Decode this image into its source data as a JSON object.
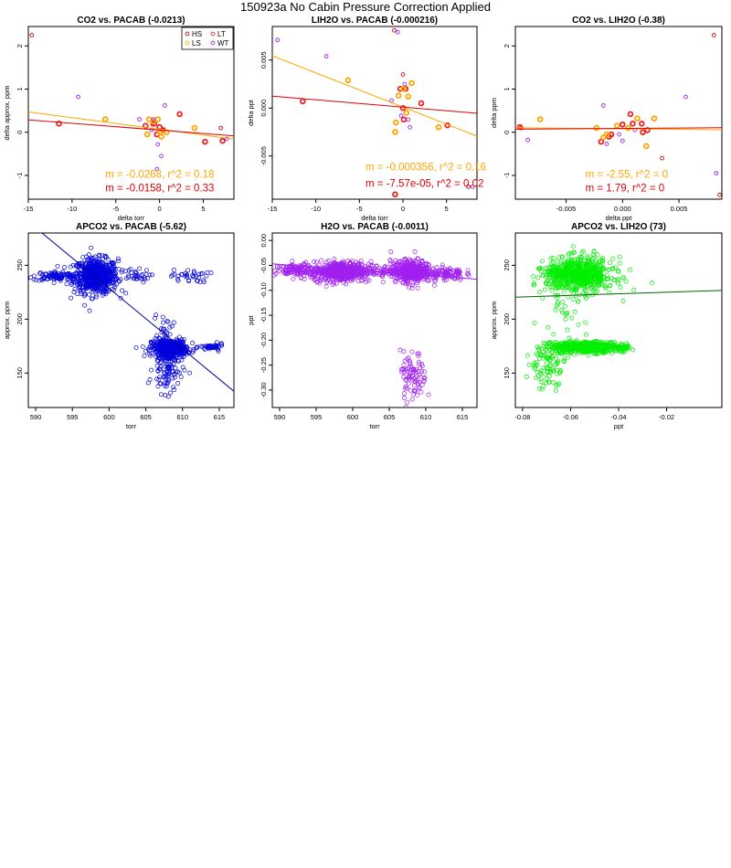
{
  "main_title": "150923a   No Cabin Pressure Correction Applied",
  "colors": {
    "HS": "#cc0000",
    "LS": "#ffa500",
    "LT": "#ee2222",
    "WT": "#a020f0",
    "fit_orange": "#ffa500",
    "fit_red": "#dd0000",
    "blue": "#0000dd",
    "purple": "#a020f0",
    "green": "#00ee00",
    "fit_darkblue": "#000099",
    "fit_darkgreen": "#006400"
  },
  "chart_data": [
    {
      "type": "scatter",
      "title": "CO2 vs. PACAB (-0.0213)",
      "xlabel": "delta torr",
      "ylabel": "delta approx. ppm",
      "xlim": [
        -15,
        8.5
      ],
      "ylim": [
        -1.55,
        2.45
      ],
      "xticks": [
        -15,
        -10,
        -5,
        0,
        5
      ],
      "yticks": [
        -1,
        0,
        1,
        2
      ],
      "legend": {
        "position": "top-right",
        "entries": [
          {
            "label": "HS",
            "color": "#cc0000"
          },
          {
            "label": "LT",
            "color": "#ee2222"
          },
          {
            "label": "LS",
            "color": "#ffa500"
          },
          {
            "label": "WT",
            "color": "#a020f0"
          }
        ]
      },
      "series": [
        {
          "name": "HS",
          "points": [
            [
              -14.6,
              2.25
            ],
            [
              7,
              0.1
            ],
            [
              -0.8,
              0.18
            ],
            [
              0.3,
              0.05
            ]
          ]
        },
        {
          "name": "LT",
          "points": [
            [
              -11.5,
              0.2
            ],
            [
              -1.6,
              0.15
            ],
            [
              -0.6,
              0.2
            ],
            [
              0,
              0.12
            ],
            [
              0.4,
              0.05
            ],
            [
              2.3,
              0.42
            ],
            [
              5.2,
              -0.22
            ],
            [
              7.2,
              -0.2
            ],
            [
              -0.3,
              -0.05
            ]
          ]
        },
        {
          "name": "LS",
          "points": [
            [
              -6.2,
              0.3
            ],
            [
              -0.7,
              0.25
            ],
            [
              -0.2,
              0.3
            ],
            [
              0.1,
              0.0
            ],
            [
              0.2,
              -0.1
            ],
            [
              0.8,
              0.0
            ],
            [
              4,
              0.1
            ],
            [
              -1.4,
              -0.05
            ],
            [
              -1.2,
              0.3
            ]
          ]
        },
        {
          "name": "WT",
          "points": [
            [
              -9.3,
              0.82
            ],
            [
              -2.3,
              0.3
            ],
            [
              -0.7,
              0.3
            ],
            [
              -0.2,
              -0.28
            ],
            [
              0.2,
              -0.55
            ],
            [
              0.6,
              0.62
            ],
            [
              7.7,
              -0.15
            ],
            [
              -0.3,
              -0.85
            ],
            [
              -0.9,
              0.05
            ]
          ]
        }
      ],
      "fits": [
        {
          "name": "orange",
          "slope": -0.0268,
          "intercept": 0.07,
          "color": "#ffa500"
        },
        {
          "name": "red",
          "slope": -0.0158,
          "intercept": 0.05,
          "color": "#dd0000"
        }
      ],
      "annotations": [
        {
          "text": "m = -0.0268, r^2 = 0.18",
          "color": "#ffa500",
          "at": [
            -6.2,
            -1.05
          ]
        },
        {
          "text": "m = -0.0158, r^2 = 0.33",
          "color": "#dd0000",
          "at": [
            -6.2,
            -1.37
          ]
        }
      ]
    },
    {
      "type": "scatter",
      "title": "LIH2O vs. PACAB (-0.000216)",
      "xlabel": "delta torr",
      "ylabel": "delta ppt",
      "xlim": [
        -15,
        8.5
      ],
      "ylim": [
        -0.0095,
        0.0085
      ],
      "xticks": [
        -15,
        -10,
        -5,
        0,
        5
      ],
      "yticks": [
        -0.005,
        0.0,
        0.005
      ],
      "ytick_labels": [
        "-0.005",
        "0.000",
        "0.005"
      ],
      "series": [
        {
          "name": "HS",
          "points": [
            [
              -1.0,
              0.0081
            ],
            [
              0.0,
              0.0035
            ],
            [
              7.5,
              -0.0082
            ]
          ]
        },
        {
          "name": "LT",
          "points": [
            [
              -11.5,
              0.0007
            ],
            [
              -0.9,
              -0.009
            ],
            [
              -0.3,
              0.002
            ],
            [
              0.0,
              0.0
            ],
            [
              0.1,
              -0.0012
            ],
            [
              2.1,
              0.0005
            ],
            [
              5.1,
              -0.0018
            ],
            [
              0.3,
              0.002
            ]
          ]
        },
        {
          "name": "LS",
          "points": [
            [
              -6.3,
              0.0029
            ],
            [
              -0.9,
              -0.0025
            ],
            [
              -0.5,
              0.0013
            ],
            [
              0.1,
              0.002
            ],
            [
              0.4,
              -0.0005
            ],
            [
              1.0,
              0.0026
            ],
            [
              4.1,
              -0.002
            ],
            [
              -0.8,
              -0.0015
            ],
            [
              0.6,
              0.0012
            ]
          ]
        },
        {
          "name": "WT",
          "points": [
            [
              -14.4,
              0.0071
            ],
            [
              -8.8,
              0.0054
            ],
            [
              -0.6,
              0.0079
            ],
            [
              0.2,
              0.0025
            ],
            [
              0.6,
              -0.0012
            ],
            [
              -0.2,
              -0.0008
            ],
            [
              8.0,
              -0.0082
            ],
            [
              -1.3,
              0.0008
            ],
            [
              0.8,
              -0.002
            ]
          ]
        }
      ],
      "fits": [
        {
          "name": "orange",
          "slope": -0.000356,
          "intercept": 0.0001,
          "color": "#ffa500"
        },
        {
          "name": "red",
          "slope": -7.57e-05,
          "intercept": 0.0001,
          "color": "#dd0000"
        }
      ],
      "annotations": [
        {
          "text": "m = -0.000356, r^2 = 0.16",
          "color": "#ffa500",
          "at": [
            -4.3,
            -0.0065
          ]
        },
        {
          "text": "m = -7.57e-05, r^2 = 0.02",
          "color": "#dd0000",
          "at": [
            -4.3,
            -0.0082
          ]
        }
      ]
    },
    {
      "type": "scatter",
      "title": "CO2 vs. LIH2O (-0.38)",
      "xlabel": "delta ppt",
      "ylabel": "delta ppm",
      "xlim": [
        -0.0095,
        0.0088
      ],
      "ylim": [
        -1.55,
        2.45
      ],
      "xticks": [
        -0.005,
        0.0,
        0.005
      ],
      "xtick_labels": [
        "-0.005",
        "0.000",
        "0.005"
      ],
      "yticks": [
        -1,
        0,
        1,
        2
      ],
      "series": [
        {
          "name": "HS",
          "points": [
            [
              0.0081,
              2.25
            ],
            [
              0.0035,
              -0.6
            ],
            [
              -0.009,
              0.1
            ],
            [
              0.0086,
              -1.45
            ]
          ]
        },
        {
          "name": "LT",
          "points": [
            [
              -0.0091,
              0.12
            ],
            [
              -0.0019,
              -0.22
            ],
            [
              0.0,
              0.18
            ],
            [
              0.0007,
              0.42
            ],
            [
              0.0018,
              0.0
            ],
            [
              0.0022,
              0.05
            ],
            [
              -0.001,
              -0.05
            ],
            [
              -0.0012,
              -0.1
            ],
            [
              0.0017,
              0.2
            ],
            [
              0.0009,
              0.2
            ]
          ]
        },
        {
          "name": "LS",
          "points": [
            [
              -0.0073,
              0.3
            ],
            [
              -0.0023,
              0.1
            ],
            [
              -0.0014,
              -0.05
            ],
            [
              0.0013,
              0.32
            ],
            [
              0.0028,
              0.32
            ],
            [
              0.0021,
              -0.32
            ],
            [
              -0.0005,
              0.15
            ],
            [
              0.0005,
              0.1
            ],
            [
              -0.0017,
              -0.12
            ]
          ]
        },
        {
          "name": "WT",
          "points": [
            [
              -0.0084,
              -0.18
            ],
            [
              -0.0017,
              0.62
            ],
            [
              -0.0014,
              -0.27
            ],
            [
              0.0,
              -0.2
            ],
            [
              0.0056,
              0.82
            ],
            [
              0.0083,
              -0.95
            ],
            [
              -0.0003,
              -0.05
            ],
            [
              0.0011,
              0.05
            ]
          ]
        }
      ],
      "fits": [
        {
          "name": "orange",
          "slope": -2.55,
          "intercept": 0.08,
          "color": "#ffa500"
        },
        {
          "name": "red",
          "slope": 1.79,
          "intercept": 0.09,
          "color": "#dd0000"
        }
      ],
      "annotations": [
        {
          "text": "m = -2.55, r^2 = 0",
          "color": "#ffa500",
          "at": [
            -0.0033,
            -1.05
          ]
        },
        {
          "text": "m = 1.79, r^2 = 0",
          "color": "#dd0000",
          "at": [
            -0.0033,
            -1.37
          ]
        }
      ]
    },
    {
      "type": "scatter",
      "title": "APCO2 vs. PACAB (-5.62)",
      "xlabel": "torr",
      "ylabel": "approx. ppm",
      "xlim": [
        589,
        617
      ],
      "ylim": [
        118,
        280
      ],
      "xticks": [
        590,
        595,
        600,
        605,
        610,
        615
      ],
      "yticks": [
        150,
        200,
        250
      ],
      "color": "#0000dd",
      "clusters": [
        {
          "cx": 598.2,
          "cy": 240,
          "sx": 1.5,
          "sy": 8,
          "n": 650
        },
        {
          "cx": 592.8,
          "cy": 240,
          "sx": 1.6,
          "sy": 2.2,
          "n": 100
        },
        {
          "cx": 603.5,
          "cy": 240,
          "sx": 1.0,
          "sy": 3,
          "n": 30
        },
        {
          "cx": 611,
          "cy": 240,
          "sx": 1.3,
          "sy": 3,
          "n": 35
        },
        {
          "cx": 608.2,
          "cy": 173,
          "sx": 1.2,
          "sy": 4,
          "n": 450
        },
        {
          "cx": 614,
          "cy": 174,
          "sx": 0.8,
          "sy": 1.5,
          "n": 45
        },
        {
          "cx": 608.0,
          "cy": 155,
          "sx": 1.0,
          "sy": 12,
          "n": 110
        },
        {
          "cx": 607.5,
          "cy": 195,
          "sx": 0.7,
          "sy": 5,
          "n": 15
        }
      ],
      "fits": [
        {
          "name": "fit",
          "slope": -5.62,
          "intercept": 3600.6,
          "color": "#000099"
        }
      ]
    },
    {
      "type": "scatter",
      "title": "H2O vs. PACAB (-0.0011)",
      "xlabel": "torr",
      "ylabel": "ppt",
      "xlim": [
        589,
        617
      ],
      "ylim": [
        -0.335,
        0.015
      ],
      "xticks": [
        590,
        595,
        600,
        605,
        610,
        615
      ],
      "yticks": [
        -0.3,
        -0.25,
        -0.2,
        -0.15,
        -0.1,
        -0.05,
        0.0
      ],
      "ytick_labels": [
        "-0.30",
        "-0.25",
        "-0.20",
        "-0.15",
        "-0.10",
        "-0.05",
        "0.00"
      ],
      "color": "#a020f0",
      "clusters": [
        {
          "cx": 598.5,
          "cy": -0.062,
          "sx": 2.0,
          "sy": 0.01,
          "n": 550
        },
        {
          "cx": 592.5,
          "cy": -0.06,
          "sx": 1.6,
          "sy": 0.006,
          "n": 120
        },
        {
          "cx": 608.0,
          "cy": -0.062,
          "sx": 1.4,
          "sy": 0.011,
          "n": 450
        },
        {
          "cx": 612.8,
          "cy": -0.066,
          "sx": 1.2,
          "sy": 0.007,
          "n": 90
        },
        {
          "cx": 608.3,
          "cy": -0.275,
          "sx": 0.9,
          "sy": 0.025,
          "n": 90
        },
        {
          "cx": 604.0,
          "cy": -0.062,
          "sx": 0.7,
          "sy": 0.006,
          "n": 30
        }
      ],
      "fits": [
        {
          "name": "fit",
          "slope": -0.0011,
          "intercept": 0.601,
          "color": "#a020f0"
        }
      ]
    },
    {
      "type": "scatter",
      "title": "APCO2 vs. LIH2O (73)",
      "xlabel": "ppt",
      "ylabel": "approx. ppm",
      "xlim": [
        -0.083,
        0.003
      ],
      "ylim": [
        118,
        280
      ],
      "xticks": [
        -0.08,
        -0.06,
        -0.04,
        -0.02
      ],
      "ytick_labels": [
        "150",
        "200",
        "250"
      ],
      "yticks": [
        150,
        200,
        250
      ],
      "color": "#00ee00",
      "clusters": [
        {
          "cx": -0.056,
          "cy": 241,
          "sx": 0.007,
          "sy": 8,
          "n": 650
        },
        {
          "cx": -0.066,
          "cy": 242,
          "sx": 0.003,
          "sy": 4,
          "n": 60
        },
        {
          "cx": -0.054,
          "cy": 174,
          "sx": 0.007,
          "sy": 2.5,
          "n": 500
        },
        {
          "cx": -0.07,
          "cy": 160,
          "sx": 0.004,
          "sy": 12,
          "n": 110
        },
        {
          "cx": -0.04,
          "cy": 173,
          "sx": 0.003,
          "sy": 1.5,
          "n": 40
        },
        {
          "cx": -0.062,
          "cy": 200,
          "sx": 0.004,
          "sy": 12,
          "n": 25
        }
      ],
      "fits": [
        {
          "name": "fit",
          "slope": 73,
          "intercept": 226.5,
          "color": "#006400"
        }
      ]
    }
  ]
}
